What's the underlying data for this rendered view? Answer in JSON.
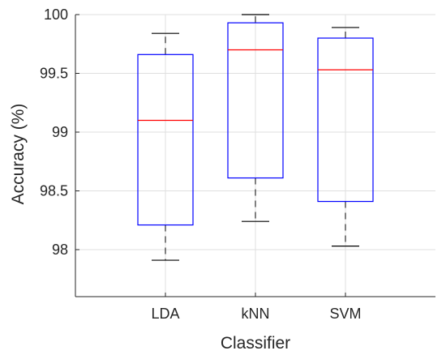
{
  "chart_data": {
    "type": "box",
    "xlabel": "Classifier",
    "ylabel": "Accuracy (%)",
    "ylim": [
      97.6,
      100
    ],
    "yticks": [
      "98",
      "98.5",
      "99",
      "99.5",
      "100"
    ],
    "ytick_values": [
      98,
      98.5,
      99,
      99.5,
      100
    ],
    "categories": [
      "LDA",
      "kNN",
      "SVM"
    ],
    "boxes": [
      {
        "name": "LDA",
        "min": 97.91,
        "q1": 98.21,
        "median": 99.1,
        "q3": 99.66,
        "max": 99.84
      },
      {
        "name": "kNN",
        "min": 98.24,
        "q1": 98.61,
        "median": 99.7,
        "q3": 99.93,
        "max": 100.0
      },
      {
        "name": "SVM",
        "min": 98.03,
        "q1": 98.41,
        "median": 99.53,
        "q3": 99.8,
        "max": 99.89
      }
    ],
    "grid": true,
    "colors": {
      "box": "#0000ff",
      "median": "#ff0000",
      "whisker": "#000000",
      "grid": "#dfdfdf",
      "axis": "#262626"
    }
  }
}
